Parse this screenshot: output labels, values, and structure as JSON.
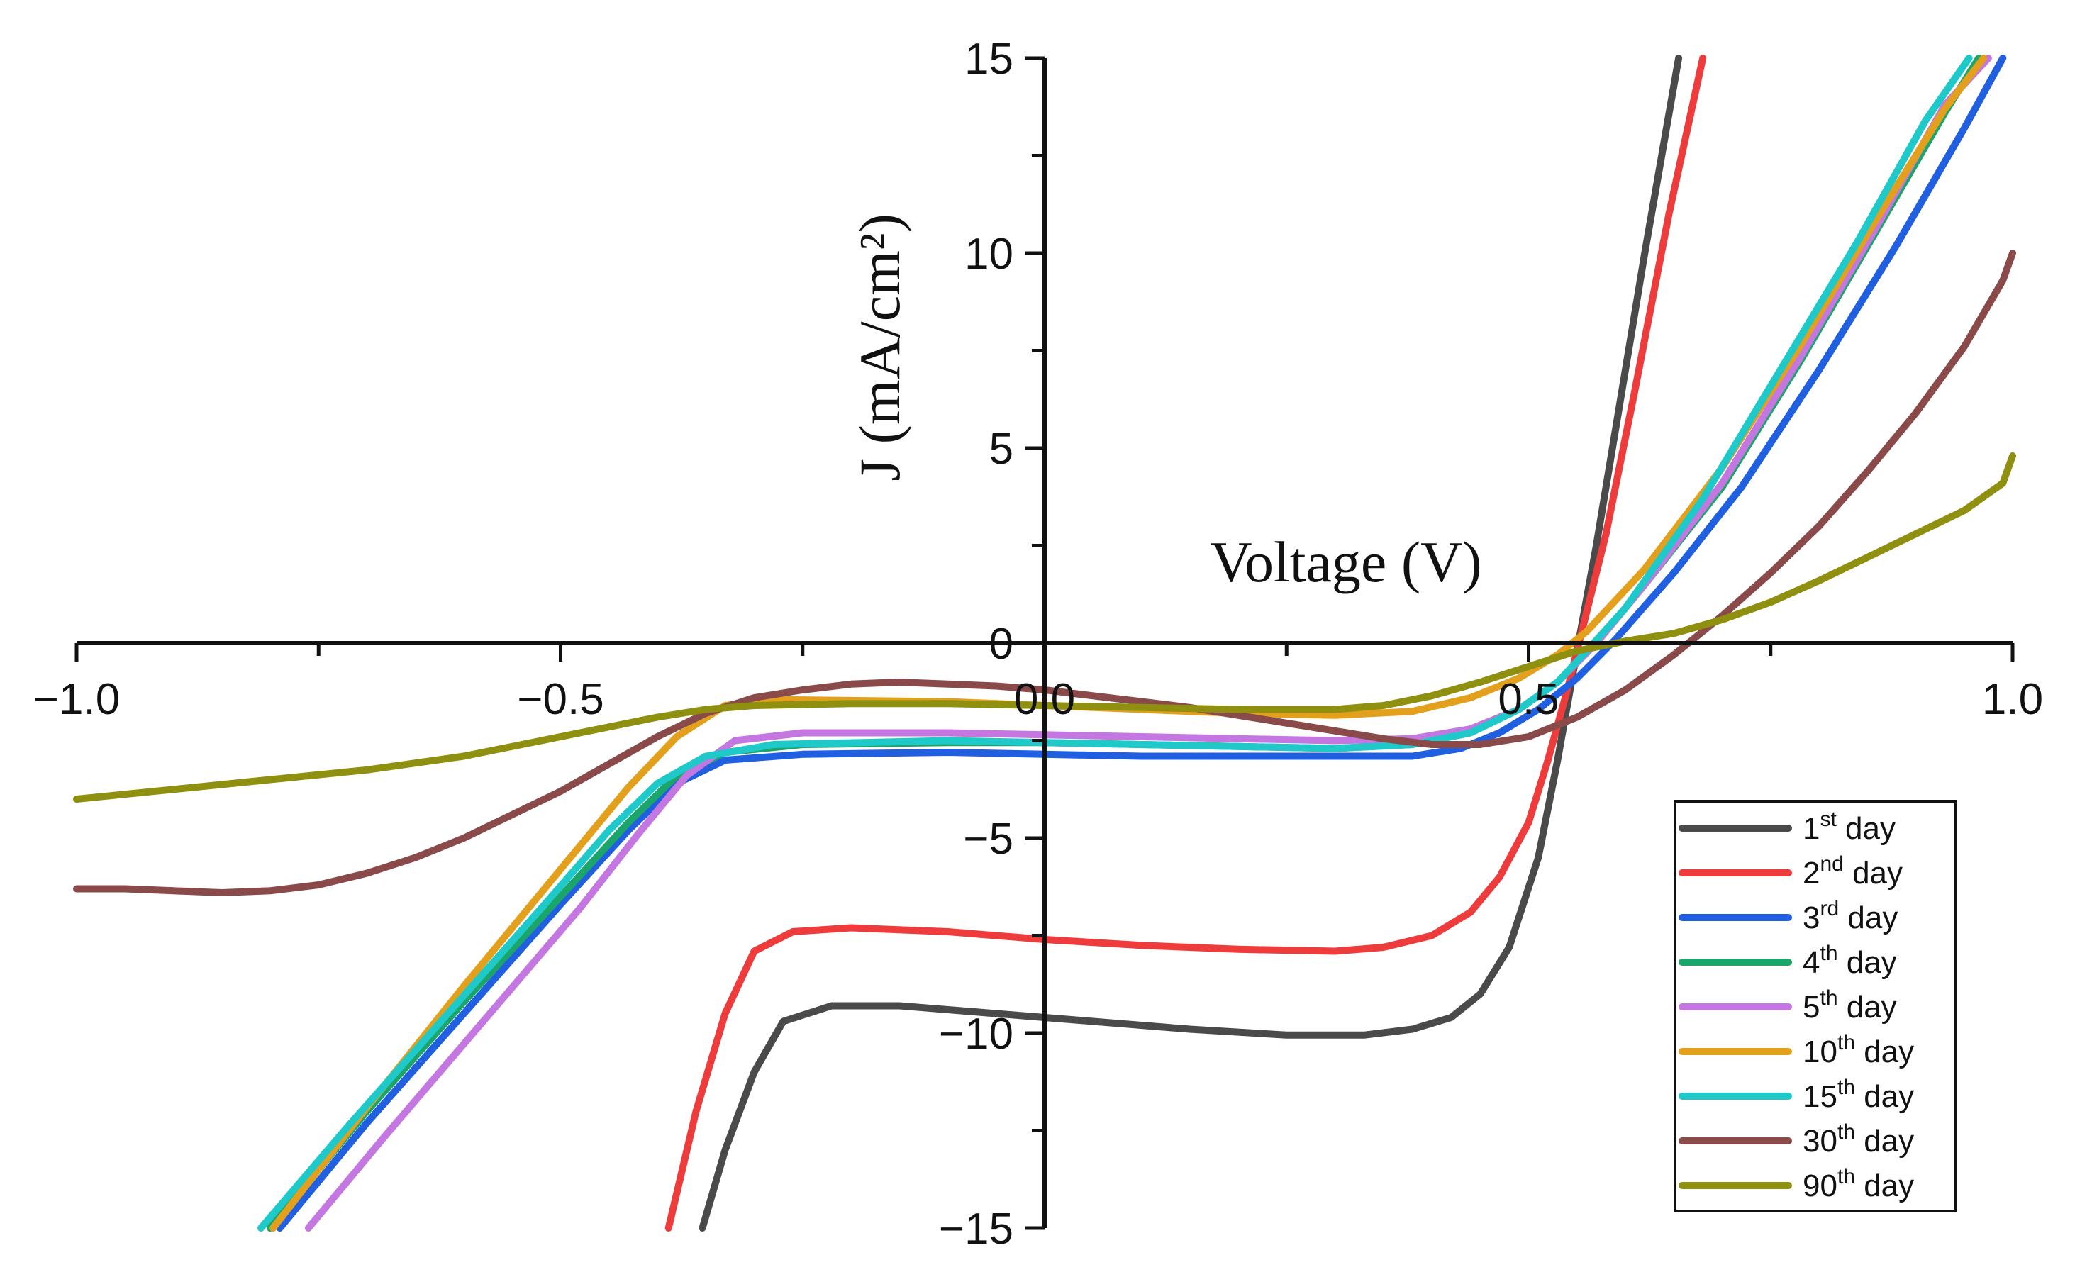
{
  "chart_data": {
    "type": "line",
    "title": "",
    "xlabel": "Voltage (V)",
    "ylabel": "J (mA/cm²)",
    "xlim": [
      -1.0,
      1.0
    ],
    "ylim": [
      -15,
      15
    ],
    "x_ticks": [
      -1.0,
      -0.5,
      0.0,
      0.5,
      1.0
    ],
    "x_tick_labels": [
      "−1.0",
      "−0.5",
      "0.0",
      "0.5",
      "1.0"
    ],
    "y_ticks": [
      -15,
      -10,
      -5,
      0,
      5,
      10,
      15
    ],
    "y_tick_labels": [
      "−15",
      "−10",
      "−5",
      "0",
      "5",
      "10",
      "15"
    ],
    "grid": false,
    "legend_position": "bottom-right",
    "series": [
      {
        "name": "1st day",
        "label_base": "1",
        "label_sup": "st",
        "label_suffix": " day",
        "color": "#4a4a4a",
        "points": [
          [
            -0.3535,
            -15.0
          ],
          [
            -0.33,
            -13.0
          ],
          [
            -0.3,
            -11.0
          ],
          [
            -0.27,
            -9.7
          ],
          [
            -0.22,
            -9.3
          ],
          [
            -0.15,
            -9.3
          ],
          [
            -0.05,
            -9.5
          ],
          [
            0.05,
            -9.7
          ],
          [
            0.15,
            -9.9
          ],
          [
            0.25,
            -10.05
          ],
          [
            0.33,
            -10.05
          ],
          [
            0.38,
            -9.9
          ],
          [
            0.42,
            -9.6
          ],
          [
            0.45,
            -9.0
          ],
          [
            0.48,
            -7.8
          ],
          [
            0.51,
            -5.5
          ],
          [
            0.53,
            -3.0
          ],
          [
            0.55,
            -0.2
          ],
          [
            0.57,
            2.5
          ],
          [
            0.59,
            5.5
          ],
          [
            0.62,
            10.0
          ],
          [
            0.655,
            15.0
          ]
        ]
      },
      {
        "name": "2nd day",
        "label_base": "2",
        "label_sup": "nd",
        "label_suffix": " day",
        "color": "#ee3b3b",
        "points": [
          [
            -0.3885,
            -15.0
          ],
          [
            -0.36,
            -12.0
          ],
          [
            -0.33,
            -9.5
          ],
          [
            -0.3,
            -7.9
          ],
          [
            -0.26,
            -7.4
          ],
          [
            -0.2,
            -7.3
          ],
          [
            -0.1,
            -7.4
          ],
          [
            0.0,
            -7.6
          ],
          [
            0.1,
            -7.75
          ],
          [
            0.2,
            -7.85
          ],
          [
            0.3,
            -7.9
          ],
          [
            0.35,
            -7.8
          ],
          [
            0.4,
            -7.5
          ],
          [
            0.44,
            -6.9
          ],
          [
            0.47,
            -6.0
          ],
          [
            0.5,
            -4.6
          ],
          [
            0.52,
            -3.0
          ],
          [
            0.54,
            -1.2
          ],
          [
            0.555,
            0.3
          ],
          [
            0.58,
            2.8
          ],
          [
            0.61,
            6.5
          ],
          [
            0.645,
            11.0
          ],
          [
            0.68,
            15.0
          ]
        ]
      },
      {
        "name": "3rd day",
        "label_base": "3",
        "label_sup": "rd",
        "label_suffix": " day",
        "color": "#1f5fe0",
        "points": [
          [
            -0.79,
            -15.0
          ],
          [
            -0.7,
            -12.3
          ],
          [
            -0.6,
            -9.5
          ],
          [
            -0.5,
            -6.7
          ],
          [
            -0.43,
            -4.8
          ],
          [
            -0.38,
            -3.6
          ],
          [
            -0.33,
            -3.0
          ],
          [
            -0.25,
            -2.85
          ],
          [
            -0.1,
            -2.8
          ],
          [
            0.0,
            -2.85
          ],
          [
            0.1,
            -2.9
          ],
          [
            0.2,
            -2.9
          ],
          [
            0.3,
            -2.9
          ],
          [
            0.38,
            -2.9
          ],
          [
            0.43,
            -2.7
          ],
          [
            0.47,
            -2.3
          ],
          [
            0.51,
            -1.7
          ],
          [
            0.55,
            -0.9
          ],
          [
            0.59,
            0.1
          ],
          [
            0.65,
            1.8
          ],
          [
            0.72,
            4.0
          ],
          [
            0.8,
            7.0
          ],
          [
            0.88,
            10.2
          ],
          [
            0.95,
            13.2
          ],
          [
            0.99,
            15.0
          ]
        ]
      },
      {
        "name": "4th day",
        "label_base": "4",
        "label_sup": "th",
        "label_suffix": " day",
        "color": "#1ca56a",
        "points": [
          [
            -0.8,
            -15.0
          ],
          [
            -0.7,
            -12.0
          ],
          [
            -0.6,
            -9.2
          ],
          [
            -0.5,
            -6.5
          ],
          [
            -0.43,
            -4.6
          ],
          [
            -0.38,
            -3.4
          ],
          [
            -0.33,
            -2.8
          ],
          [
            -0.25,
            -2.6
          ],
          [
            -0.1,
            -2.55
          ],
          [
            0.0,
            -2.55
          ],
          [
            0.1,
            -2.6
          ],
          [
            0.2,
            -2.65
          ],
          [
            0.3,
            -2.7
          ],
          [
            0.38,
            -2.6
          ],
          [
            0.44,
            -2.3
          ],
          [
            0.49,
            -1.7
          ],
          [
            0.53,
            -1.0
          ],
          [
            0.57,
            0.0
          ],
          [
            0.62,
            1.5
          ],
          [
            0.7,
            4.0
          ],
          [
            0.78,
            7.2
          ],
          [
            0.86,
            10.6
          ],
          [
            0.93,
            13.6
          ],
          [
            0.965,
            15.0
          ]
        ]
      },
      {
        "name": "5th day",
        "label_base": "5",
        "label_sup": "th",
        "label_suffix": " day",
        "color": "#c477e0",
        "points": [
          [
            -0.7605,
            -15.0
          ],
          [
            -0.68,
            -12.6
          ],
          [
            -0.58,
            -9.7
          ],
          [
            -0.48,
            -6.8
          ],
          [
            -0.42,
            -4.9
          ],
          [
            -0.37,
            -3.4
          ],
          [
            -0.32,
            -2.5
          ],
          [
            -0.25,
            -2.3
          ],
          [
            -0.1,
            -2.3
          ],
          [
            0.0,
            -2.35
          ],
          [
            0.1,
            -2.4
          ],
          [
            0.2,
            -2.45
          ],
          [
            0.3,
            -2.5
          ],
          [
            0.38,
            -2.45
          ],
          [
            0.44,
            -2.2
          ],
          [
            0.49,
            -1.7
          ],
          [
            0.53,
            -1.0
          ],
          [
            0.57,
            0.0
          ],
          [
            0.62,
            1.5
          ],
          [
            0.7,
            4.1
          ],
          [
            0.78,
            7.3
          ],
          [
            0.86,
            10.7
          ],
          [
            0.93,
            13.8
          ],
          [
            0.975,
            15.0
          ]
        ]
      },
      {
        "name": "10th day",
        "label_base": "10",
        "label_sup": "th",
        "label_suffix": " day",
        "color": "#e3a01c",
        "points": [
          [
            -0.797,
            -15.0
          ],
          [
            -0.7,
            -11.9
          ],
          [
            -0.6,
            -8.8
          ],
          [
            -0.5,
            -5.8
          ],
          [
            -0.43,
            -3.7
          ],
          [
            -0.38,
            -2.4
          ],
          [
            -0.33,
            -1.6
          ],
          [
            -0.28,
            -1.45
          ],
          [
            -0.1,
            -1.5
          ],
          [
            0.0,
            -1.6
          ],
          [
            0.1,
            -1.7
          ],
          [
            0.2,
            -1.8
          ],
          [
            0.3,
            -1.85
          ],
          [
            0.38,
            -1.75
          ],
          [
            0.44,
            -1.4
          ],
          [
            0.49,
            -0.9
          ],
          [
            0.53,
            -0.3
          ],
          [
            0.56,
            0.3
          ],
          [
            0.62,
            1.9
          ],
          [
            0.7,
            4.5
          ],
          [
            0.78,
            7.6
          ],
          [
            0.86,
            10.9
          ],
          [
            0.93,
            13.7
          ],
          [
            0.97,
            15.0
          ]
        ]
      },
      {
        "name": "15th day",
        "label_base": "15",
        "label_sup": "th",
        "label_suffix": " day",
        "color": "#1fc9c9",
        "points": [
          [
            -0.8095,
            -15.0
          ],
          [
            -0.72,
            -12.4
          ],
          [
            -0.62,
            -9.6
          ],
          [
            -0.52,
            -6.8
          ],
          [
            -0.45,
            -4.8
          ],
          [
            -0.4,
            -3.6
          ],
          [
            -0.35,
            -2.9
          ],
          [
            -0.28,
            -2.6
          ],
          [
            -0.1,
            -2.5
          ],
          [
            0.0,
            -2.55
          ],
          [
            0.1,
            -2.6
          ],
          [
            0.2,
            -2.65
          ],
          [
            0.3,
            -2.7
          ],
          [
            0.38,
            -2.6
          ],
          [
            0.44,
            -2.3
          ],
          [
            0.49,
            -1.7
          ],
          [
            0.53,
            -1.0
          ],
          [
            0.56,
            -0.2
          ],
          [
            0.6,
            0.9
          ],
          [
            0.68,
            3.7
          ],
          [
            0.76,
            7.0
          ],
          [
            0.84,
            10.3
          ],
          [
            0.91,
            13.4
          ],
          [
            0.955,
            15.0
          ]
        ]
      },
      {
        "name": "30th day",
        "label_base": "30",
        "label_sup": "th",
        "label_suffix": " day",
        "color": "#8b4a4a",
        "points": [
          [
            -1.0,
            -6.3
          ],
          [
            -0.95,
            -6.3
          ],
          [
            -0.9,
            -6.35
          ],
          [
            -0.85,
            -6.4
          ],
          [
            -0.8,
            -6.35
          ],
          [
            -0.75,
            -6.2
          ],
          [
            -0.7,
            -5.9
          ],
          [
            -0.65,
            -5.5
          ],
          [
            -0.6,
            -5.0
          ],
          [
            -0.55,
            -4.4
          ],
          [
            -0.5,
            -3.8
          ],
          [
            -0.45,
            -3.1
          ],
          [
            -0.4,
            -2.4
          ],
          [
            -0.35,
            -1.8
          ],
          [
            -0.3,
            -1.4
          ],
          [
            -0.25,
            -1.2
          ],
          [
            -0.2,
            -1.05
          ],
          [
            -0.15,
            -1.0
          ],
          [
            -0.1,
            -1.05
          ],
          [
            -0.05,
            -1.1
          ],
          [
            0.0,
            -1.2
          ],
          [
            0.05,
            -1.35
          ],
          [
            0.1,
            -1.5
          ],
          [
            0.15,
            -1.65
          ],
          [
            0.2,
            -1.85
          ],
          [
            0.25,
            -2.05
          ],
          [
            0.3,
            -2.25
          ],
          [
            0.35,
            -2.45
          ],
          [
            0.4,
            -2.6
          ],
          [
            0.45,
            -2.6
          ],
          [
            0.5,
            -2.4
          ],
          [
            0.55,
            -1.9
          ],
          [
            0.6,
            -1.2
          ],
          [
            0.65,
            -0.3
          ],
          [
            0.7,
            0.7
          ],
          [
            0.75,
            1.8
          ],
          [
            0.8,
            3.0
          ],
          [
            0.85,
            4.4
          ],
          [
            0.9,
            5.9
          ],
          [
            0.95,
            7.6
          ],
          [
            0.99,
            9.3
          ],
          [
            1.0,
            10.0
          ]
        ]
      },
      {
        "name": "90th day",
        "label_base": "90",
        "label_sup": "th",
        "label_suffix": " day",
        "color": "#8f8f10",
        "points": [
          [
            -1.0,
            -4.0
          ],
          [
            -0.9,
            -3.75
          ],
          [
            -0.8,
            -3.5
          ],
          [
            -0.7,
            -3.25
          ],
          [
            -0.6,
            -2.9
          ],
          [
            -0.5,
            -2.4
          ],
          [
            -0.4,
            -1.9
          ],
          [
            -0.35,
            -1.7
          ],
          [
            -0.3,
            -1.6
          ],
          [
            -0.2,
            -1.55
          ],
          [
            -0.1,
            -1.55
          ],
          [
            0.0,
            -1.6
          ],
          [
            0.1,
            -1.65
          ],
          [
            0.2,
            -1.7
          ],
          [
            0.3,
            -1.7
          ],
          [
            0.35,
            -1.6
          ],
          [
            0.4,
            -1.35
          ],
          [
            0.45,
            -1.0
          ],
          [
            0.5,
            -0.6
          ],
          [
            0.55,
            -0.2
          ],
          [
            0.6,
            0.05
          ],
          [
            0.65,
            0.25
          ],
          [
            0.7,
            0.6
          ],
          [
            0.75,
            1.05
          ],
          [
            0.8,
            1.6
          ],
          [
            0.85,
            2.2
          ],
          [
            0.9,
            2.8
          ],
          [
            0.95,
            3.4
          ],
          [
            0.99,
            4.1
          ],
          [
            1.0,
            4.8
          ]
        ]
      }
    ]
  }
}
